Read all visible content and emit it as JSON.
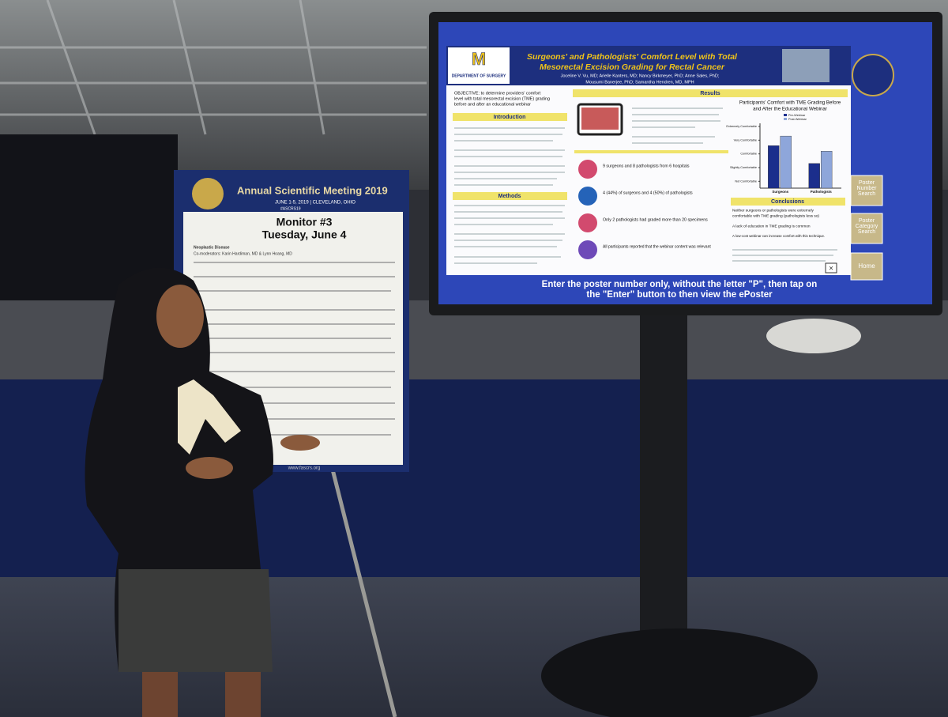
{
  "sign": {
    "title": "Annual Scientific Meeting 2019",
    "dates": "JUNE 1-5, 2019 | CLEVELAND, OHIO",
    "hashtag": "#ASCRS19",
    "monitor": "Monitor #3",
    "day": "Tuesday, June 4",
    "section": "Neoplastic Disease",
    "moderators": "Co-moderators: Karin Hardiman, MD & Lynn Hoang, MD",
    "url": "www.fascrs.org"
  },
  "poster": {
    "department": "DEPARTMENT OF SURGERY",
    "title_line1": "Surgeons' and Pathologists' Comfort Level with Total",
    "title_line2": "Mesorectal Excision Grading for Rectal Cancer",
    "authors_line1": "Joceline V. Vu, MD; Arielle Kanters, MD; Nancy Birkmeyer, PhD; Anne Sales, PhD;",
    "authors_line2": "Mousumi Banerjee, PhD; Samantha Hendren, MD, MPH",
    "objective": [
      "OBJECTIVE: to determine providers' comfort",
      "level with total mesorectal excision (TME) grading",
      "before and after an educational webinar"
    ],
    "headings": [
      "Introduction",
      "Methods",
      "Results",
      "Conclusions"
    ],
    "results": [
      "9 surgeons and 8 pathologists from 6 hospitals",
      "4 (44%) of surgeons and 4 (50%) of pathologists",
      "Only 2 pathologists had graded more than 20 specimens",
      "All participants reported that the webinar content was relevant"
    ],
    "conclusions": [
      "Neither surgeons or pathologists were extremely",
      "comfortable with TME grading (pathologists less so)",
      "A lack of education in TME grading is common",
      "A low-cost webinar can increase comfort with this technique."
    ]
  },
  "screen": {
    "instruction_line1": "Enter the poster number only, without the letter \"P\", then tap on",
    "instruction_line2": "the \"Enter\" button to then view the ePoster",
    "buttons": [
      "Poster Number Search",
      "Poster Category Search",
      "Home"
    ]
  },
  "chart_data": {
    "type": "bar",
    "title": [
      "Participants' Comfort with TME Grading Before",
      "and After the Educational Webinar"
    ],
    "categories": [
      "Surgeons",
      "Pathologists"
    ],
    "series": [
      {
        "name": "Pre-Webinar",
        "color": "#1b2e8c",
        "values": [
          3.6,
          2.3
        ]
      },
      {
        "name": "Post-Webinar",
        "color": "#8ea6da",
        "values": [
          4.3,
          3.2
        ]
      }
    ],
    "ylim": [
      0.5,
      5
    ],
    "yticks": [
      {
        "value": 1,
        "label": "Not Comfortable"
      },
      {
        "value": 2,
        "label": "Slightly Comfortable"
      },
      {
        "value": 3,
        "label": "Comfortable"
      },
      {
        "value": 4,
        "label": "Very Comfortable"
      },
      {
        "value": 5,
        "label": "Extremely Comfortable"
      }
    ]
  }
}
